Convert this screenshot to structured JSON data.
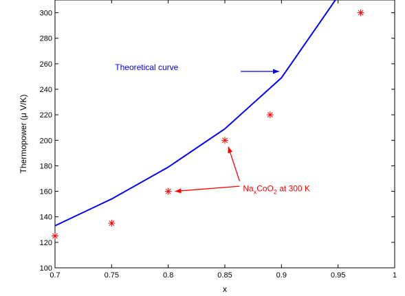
{
  "chart_data": {
    "type": "line",
    "xlabel": "x",
    "ylabel": "Thermopower (μ V/K)",
    "xlim": [
      0.7,
      1.0
    ],
    "ylim": [
      100,
      310
    ],
    "grid": false,
    "xticks": [
      0.7,
      0.75,
      0.8,
      0.85,
      0.9,
      0.95,
      1
    ],
    "xtick_labels": [
      "0.7",
      "0.75",
      "0.8",
      "0.85",
      "0.9",
      "0.95",
      "1"
    ],
    "yticks": [
      100,
      120,
      140,
      160,
      180,
      200,
      220,
      240,
      260,
      280,
      300
    ],
    "ytick_labels": [
      "100",
      "120",
      "140",
      "160",
      "180",
      "200",
      "220",
      "240",
      "260",
      "280",
      "300"
    ],
    "series": [
      {
        "name": "Theoretical curve",
        "type": "line",
        "color": "#0000ff",
        "x": [
          0.7,
          0.75,
          0.8,
          0.85,
          0.9,
          0.95
        ],
        "y": [
          133,
          154,
          179,
          209,
          249,
          313
        ]
      },
      {
        "name": "Na_xCoO_2 at 300 K",
        "type": "scatter",
        "marker": "asterisk",
        "color": "#ff0000",
        "x": [
          0.7,
          0.75,
          0.8,
          0.85,
          0.89,
          0.97
        ],
        "y": [
          125,
          135,
          160,
          200,
          220,
          300
        ]
      }
    ],
    "annotations": [
      {
        "id": "theory",
        "text": "Theoretical curve",
        "color": "#0000ff",
        "text_at": [
          0.753,
          255
        ],
        "arrows": [
          {
            "from": [
              0.864,
              254
            ],
            "to": [
              0.898,
              254
            ]
          }
        ]
      },
      {
        "id": "data",
        "text_parts": [
          "Na",
          "x",
          "CoO",
          "2",
          " at 300 K"
        ],
        "color": "#ff0000",
        "text_at": [
          0.866,
          160
        ],
        "arrows": [
          {
            "from": [
              0.863,
              164
            ],
            "to": [
              0.806,
              160
            ]
          },
          {
            "from": [
              0.863,
              168
            ],
            "to": [
              0.853,
              195
            ]
          }
        ]
      }
    ]
  }
}
